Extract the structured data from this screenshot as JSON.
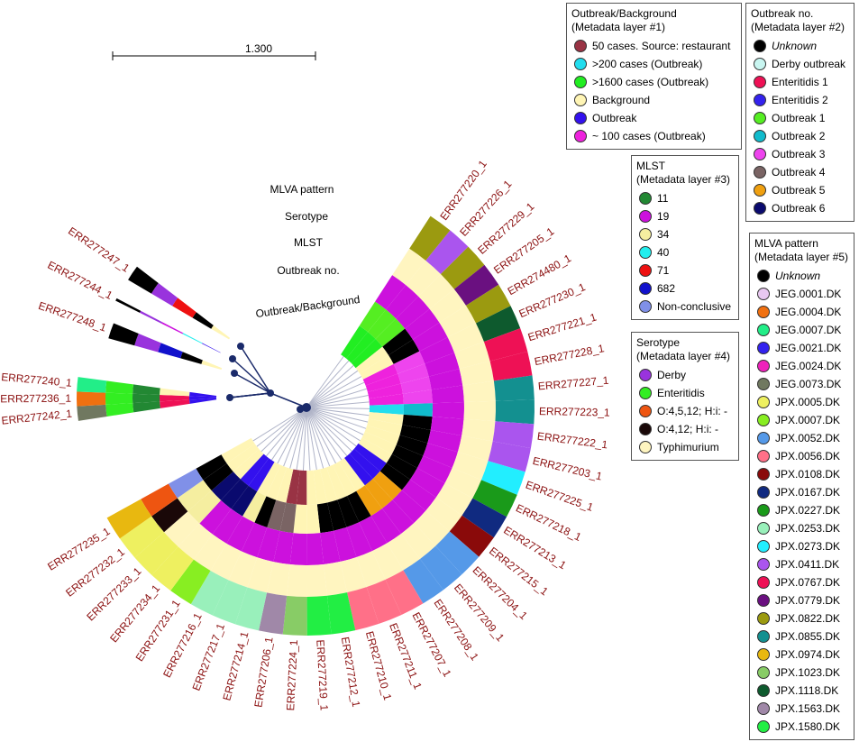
{
  "scale_bar": {
    "label": "1.300"
  },
  "ring_labels": [
    "MLVA pattern",
    "Serotype",
    "MLST",
    "Outbreak no.",
    "Outbreak/Background"
  ],
  "leaves": [
    {
      "label": "ERR277220_1",
      "colors": [
        "#22ee22",
        "#55ee22",
        "#cc11dd",
        "#fff5c0",
        "#9b9a10"
      ]
    },
    {
      "label": "ERR277226_1",
      "colors": [
        "#22ee22",
        "#55ee22",
        "#cc11dd",
        "#fff5c0",
        "#aa55ee"
      ]
    },
    {
      "label": "ERR277229_1",
      "colors": [
        "#22ee22",
        "#55ee22",
        "#cc11dd",
        "#fff5c0",
        "#9b9a10"
      ]
    },
    {
      "label": "ERR277205_1",
      "colors": [
        "#fff5b5",
        "#000000",
        "#cc11dd",
        "#fff5c0",
        "#6a1080"
      ]
    },
    {
      "label": "ERR274480_1",
      "colors": [
        "#fff5b5",
        "#000000",
        "#cc11dd",
        "#fff5c0",
        "#9b9a10"
      ]
    },
    {
      "label": "ERR277230_1",
      "colors": [
        "#ee22dd",
        "#ee44ee",
        "#cc11dd",
        "#fff5c0",
        "#0e5a2e"
      ]
    },
    {
      "label": "ERR277221_1",
      "colors": [
        "#ee22dd",
        "#ee44ee",
        "#cc11dd",
        "#fff5c0",
        "#ee1155"
      ]
    },
    {
      "label": "ERR277228_1",
      "colors": [
        "#ee22dd",
        "#ee44ee",
        "#cc11dd",
        "#fff5c0",
        "#ee1155"
      ]
    },
    {
      "label": "ERR277227_1",
      "colors": [
        "#ee22dd",
        "#ee44ee",
        "#cc11dd",
        "#fff5c0",
        "#139090"
      ]
    },
    {
      "label": "ERR277223_1",
      "colors": [
        "#22ddee",
        "#11bbcc",
        "#cc11dd",
        "#fff5c0",
        "#139090"
      ]
    },
    {
      "label": "ERR277222_1",
      "colors": [
        "#fff5b5",
        "#000000",
        "#cc11dd",
        "#fff5c0",
        "#aa55ee"
      ]
    },
    {
      "label": "ERR277203_1",
      "colors": [
        "#fff5b5",
        "#000000",
        "#cc11dd",
        "#fff5c0",
        "#aa55ee"
      ]
    },
    {
      "label": "ERR277225_1",
      "colors": [
        "#fff5b5",
        "#000000",
        "#cc11dd",
        "#fff5c0",
        "#22eeff"
      ]
    },
    {
      "label": "ERR277218_1",
      "colors": [
        "#fff5b5",
        "#000000",
        "#cc11dd",
        "#fff5c0",
        "#1a9a1a"
      ]
    },
    {
      "label": "ERR277213_1",
      "colors": [
        "#fff5b5",
        "#000000",
        "#cc11dd",
        "#fff5c0",
        "#102a80"
      ]
    },
    {
      "label": "ERR277215_1",
      "colors": [
        "#3311ee",
        "#000000",
        "#cc11dd",
        "#fff5c0",
        "#8a0a0a"
      ]
    },
    {
      "label": "ERR277204_1",
      "colors": [
        "#3311ee",
        "#f0a010",
        "#cc11dd",
        "#fff5c0",
        "#5599e8"
      ]
    },
    {
      "label": "ERR277209_1",
      "colors": [
        "#3311ee",
        "#f0a010",
        "#cc11dd",
        "#fff5c0",
        "#5599e8"
      ]
    },
    {
      "label": "ERR277208_1",
      "colors": [
        "#fff5b5",
        "#f0a010",
        "#cc11dd",
        "#fff5c0",
        "#5599e8"
      ]
    },
    {
      "label": "ERR277207_1",
      "colors": [
        "#fff5b5",
        "#000000",
        "#cc11dd",
        "#fff5c0",
        "#ff7088"
      ]
    },
    {
      "label": "ERR277211_1",
      "colors": [
        "#fff5b5",
        "#000000",
        "#cc11dd",
        "#fff5c0",
        "#ff7088"
      ]
    },
    {
      "label": "ERR277210_1",
      "colors": [
        "#fff5b5",
        "#000000",
        "#cc11dd",
        "#fff5c0",
        "#ff7088"
      ]
    },
    {
      "label": "ERR277212_1",
      "colors": [
        "#fff5b5",
        "#000000",
        "#cc11dd",
        "#fff5c0",
        "#22ee44"
      ]
    },
    {
      "label": "ERR277219_1",
      "colors": [
        "#fff5b5",
        "#fff5b5",
        "#cc11dd",
        "#fff5c0",
        "#22ee44"
      ]
    },
    {
      "label": "ERR277224_1",
      "colors": [
        "#993344",
        "#fff5b5",
        "#cc11dd",
        "#fff5c0",
        "#88cc66"
      ]
    },
    {
      "label": "ERR277206_1",
      "colors": [
        "#993344",
        "#7a6464",
        "#cc11dd",
        "#fff5c0",
        "#a088a8"
      ]
    },
    {
      "label": "ERR277214_1",
      "colors": [
        "#fff5b5",
        "#7a6464",
        "#cc11dd",
        "#fff5c0",
        "#99f0bb"
      ]
    },
    {
      "label": "ERR277217_1",
      "colors": [
        "#fff5b5",
        "#000000",
        "#cc11dd",
        "#fff5c0",
        "#99f0bb"
      ]
    },
    {
      "label": "ERR277216_1",
      "colors": [
        "#fff5b5",
        "#f5eea0",
        "#cc11dd",
        "#fff5c0",
        "#99f0bb"
      ]
    },
    {
      "label": "ERR277231_1",
      "colors": [
        "#3311ee",
        "#0a0a6e",
        "#cc11dd",
        "#fff5c0",
        "#88ee22"
      ]
    },
    {
      "label": "ERR277234_1",
      "colors": [
        "#3311ee",
        "#0a0a6e",
        "#cc11dd",
        "#fff5c0",
        "#eef060"
      ]
    },
    {
      "label": "ERR277233_1",
      "colors": [
        "#fff5b5",
        "#0a0a6e",
        "#f5eea0",
        "#fff5c0",
        "#eef060"
      ]
    },
    {
      "label": "ERR277232_1",
      "colors": [
        "#fff5b5",
        "#000000",
        "#f5eea0",
        "#1a0808",
        "#eef060"
      ]
    },
    {
      "label": "ERR277235_1",
      "colors": [
        "#fff5b5",
        "#000000",
        "#8090e8",
        "#ee5511",
        "#e8b810"
      ]
    }
  ],
  "outgroup_leaves": [
    {
      "label": "ERR277247_1",
      "colors": [
        "#fff5b5",
        "#000000",
        "#ee1111",
        "#9933dd",
        "#000000"
      ]
    },
    {
      "label": "ERR277244_1",
      "colors": [
        "#3311ee",
        "#22eeee",
        "#cc11dd",
        "#9933dd",
        "#000000"
      ]
    },
    {
      "label": "ERR277248_1",
      "colors": [
        "#fff5b5",
        "#000000",
        "#1111cc",
        "#9933dd",
        "#000000"
      ]
    },
    {
      "label": "ERR277242_1",
      "colors": [
        "#3311ee",
        "#ee1155",
        "#228833",
        "#33ee22",
        "#707860"
      ]
    },
    {
      "label": "ERR277236_1",
      "colors": [
        "#3311ee",
        "#ee1155",
        "#228833",
        "#33ee22",
        "#f07010"
      ]
    },
    {
      "label": "ERR277240_1",
      "colors": [
        "#3311ee",
        "#fff5b5",
        "#228833",
        "#33ee22",
        "#22ee88"
      ]
    }
  ],
  "legends": [
    {
      "title": "Outbreak/Background",
      "subtitle": "(Metadata layer #1)",
      "items": [
        {
          "label": "50 cases. Source: restaurant",
          "color": "#993344"
        },
        {
          "label": ">200 cases (Outbreak)",
          "color": "#22ddee"
        },
        {
          "label": ">1600 cases (Outbreak)",
          "color": "#22ee22"
        },
        {
          "label": "Background",
          "color": "#fff5b5"
        },
        {
          "label": "Outbreak",
          "color": "#3311ee"
        },
        {
          "label": "~ 100 cases (Outbreak)",
          "color": "#ee22dd"
        }
      ]
    },
    {
      "title": "Outbreak no.",
      "subtitle": "(Metadata layer #2)",
      "items": [
        {
          "label": "Unknown",
          "color": "#000000"
        },
        {
          "label": "Derby outbreak",
          "color": "#c8f5f0"
        },
        {
          "label": "Enteritidis 1",
          "color": "#ee1155"
        },
        {
          "label": "Enteritidis 2",
          "color": "#3322ee"
        },
        {
          "label": "Outbreak 1",
          "color": "#55ee22"
        },
        {
          "label": "Outbreak 2",
          "color": "#11bbcc"
        },
        {
          "label": "Outbreak 3",
          "color": "#ee44ee"
        },
        {
          "label": "Outbreak 4",
          "color": "#7a6464"
        },
        {
          "label": "Outbreak 5",
          "color": "#f0a010"
        },
        {
          "label": "Outbreak 6",
          "color": "#0a0a6e"
        }
      ]
    },
    {
      "title": "MLST",
      "subtitle": "(Metadata layer #3)",
      "items": [
        {
          "label": "11",
          "color": "#228833"
        },
        {
          "label": "19",
          "color": "#cc11dd"
        },
        {
          "label": "34",
          "color": "#f5eea0"
        },
        {
          "label": "40",
          "color": "#22eeee"
        },
        {
          "label": "71",
          "color": "#ee1111"
        },
        {
          "label": "682",
          "color": "#1111cc"
        },
        {
          "label": "Non-conclusive",
          "color": "#8090e8"
        }
      ]
    },
    {
      "title": "Serotype",
      "subtitle": "(Metadata layer #4)",
      "items": [
        {
          "label": "Derby",
          "color": "#9933dd"
        },
        {
          "label": "Enteritidis",
          "color": "#33ee22"
        },
        {
          "label": "O:4,5,12; H:i: -",
          "color": "#ee5511"
        },
        {
          "label": "O:4,12; H:i: -",
          "color": "#1a0808"
        },
        {
          "label": "Typhimurium",
          "color": "#fff5c0"
        }
      ]
    },
    {
      "title": "MLVA pattern",
      "subtitle": "(Metadata layer #5)",
      "items": [
        {
          "label": "Unknown",
          "color": "#000000"
        },
        {
          "label": "JEG.0001.DK",
          "color": "#e8c8f0"
        },
        {
          "label": "JEG.0004.DK",
          "color": "#f07010"
        },
        {
          "label": "JEG.0007.DK",
          "color": "#22ee88"
        },
        {
          "label": "JEG.0021.DK",
          "color": "#3322ee"
        },
        {
          "label": "JEG.0024.DK",
          "color": "#ee22bb"
        },
        {
          "label": "JEG.0073.DK",
          "color": "#707860"
        },
        {
          "label": "JPX.0005.DK",
          "color": "#eef060"
        },
        {
          "label": "JPX.0007.DK",
          "color": "#88ee22"
        },
        {
          "label": "JPX.0052.DK",
          "color": "#5599e8"
        },
        {
          "label": "JPX.0056.DK",
          "color": "#ff7088"
        },
        {
          "label": "JPX.0108.DK",
          "color": "#8a0a0a"
        },
        {
          "label": "JPX.0167.DK",
          "color": "#102a80"
        },
        {
          "label": "JPX.0227.DK",
          "color": "#1a9a1a"
        },
        {
          "label": "JPX.0253.DK",
          "color": "#99f0bb"
        },
        {
          "label": "JPX.0273.DK",
          "color": "#22eeff"
        },
        {
          "label": "JPX.0411.DK",
          "color": "#aa55ee"
        },
        {
          "label": "JPX.0767.DK",
          "color": "#ee1155"
        },
        {
          "label": "JPX.0779.DK",
          "color": "#6a1080"
        },
        {
          "label": "JPX.0822.DK",
          "color": "#9b9a10"
        },
        {
          "label": "JPX.0855.DK",
          "color": "#139090"
        },
        {
          "label": "JPX.0974.DK",
          "color": "#e8b810"
        },
        {
          "label": "JPX.1023.DK",
          "color": "#88cc66"
        },
        {
          "label": "JPX.1118.DK",
          "color": "#0e5a2e"
        },
        {
          "label": "JPX.1563.DK",
          "color": "#a088a8"
        },
        {
          "label": "JPX.1580.DK",
          "color": "#22ee44"
        }
      ]
    }
  ]
}
